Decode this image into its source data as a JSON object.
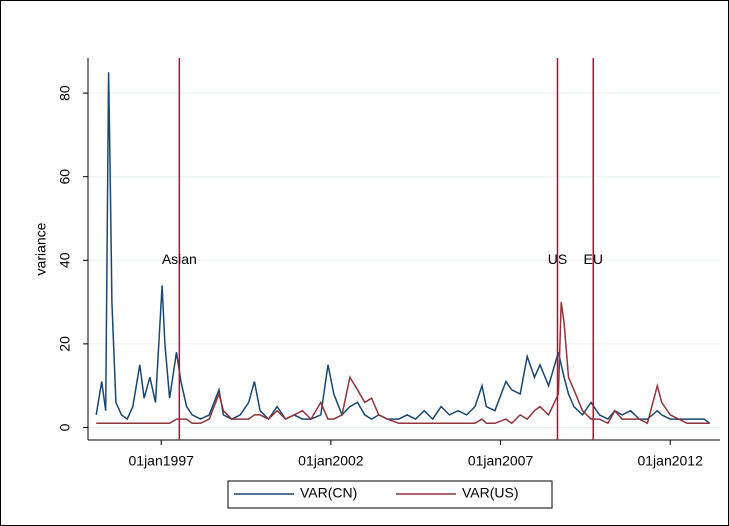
{
  "chart_data": {
    "type": "line",
    "ylabel": "variance",
    "x": [
      "1995-02-01",
      "1995-04-01",
      "1995-05-15",
      "1995-06-15",
      "1995-07-01",
      "1995-07-20",
      "1995-09-01",
      "1995-11-01",
      "1996-01-01",
      "1996-03-01",
      "1996-05-15",
      "1996-07-01",
      "1996-09-01",
      "1996-11-01",
      "1997-01-10",
      "1997-02-10",
      "1997-04-01",
      "1997-06-15",
      "1997-08-01",
      "1997-10-01",
      "1997-12-01",
      "1998-03-01",
      "1998-06-01",
      "1998-09-15",
      "1998-11-01",
      "1999-02-01",
      "1999-05-01",
      "1999-08-01",
      "1999-10-01",
      "1999-12-01",
      "2000-03-01",
      "2000-06-01",
      "2000-09-01",
      "2000-12-01",
      "2001-03-01",
      "2001-06-01",
      "2001-09-15",
      "2001-12-01",
      "2002-02-01",
      "2002-05-01",
      "2002-07-25",
      "2002-10-15",
      "2003-01-01",
      "2003-03-15",
      "2003-06-01",
      "2003-09-01",
      "2004-01-01",
      "2004-04-01",
      "2004-07-01",
      "2004-10-01",
      "2005-01-01",
      "2005-04-01",
      "2005-07-01",
      "2005-10-01",
      "2006-01-01",
      "2006-04-01",
      "2006-06-15",
      "2006-08-01",
      "2006-11-01",
      "2007-02-28",
      "2007-05-01",
      "2007-08-01",
      "2007-10-15",
      "2008-01-01",
      "2008-03-01",
      "2008-06-01",
      "2008-09-15",
      "2008-10-15",
      "2008-11-15",
      "2009-01-01",
      "2009-03-01",
      "2009-06-01",
      "2009-09-01",
      "2009-12-01",
      "2010-03-01",
      "2010-05-15",
      "2010-08-01",
      "2010-11-01",
      "2011-02-01",
      "2011-05-01",
      "2011-08-15",
      "2011-10-01",
      "2012-01-01",
      "2012-04-01",
      "2012-07-01",
      "2012-10-01",
      "2013-01-01",
      "2013-03-01"
    ],
    "series": [
      {
        "name": "VAR(CN)",
        "color": "#1a476f",
        "values": [
          3,
          11,
          4,
          85,
          62,
          30,
          6,
          3,
          2,
          5,
          15,
          7,
          12,
          6,
          34,
          20,
          7,
          18,
          11,
          5,
          3,
          2,
          3,
          9,
          3,
          2,
          3,
          6,
          11,
          4,
          2,
          5,
          2,
          3,
          2,
          2,
          3,
          15,
          8,
          3,
          5,
          6,
          3,
          2,
          3,
          2,
          2,
          3,
          2,
          4,
          2,
          5,
          3,
          4,
          3,
          5,
          10,
          5,
          4,
          11,
          9,
          8,
          17,
          12,
          15,
          10,
          18,
          15,
          12,
          8,
          5,
          3,
          6,
          3,
          2,
          4,
          3,
          4,
          2,
          2,
          4,
          3,
          2,
          2,
          2,
          2,
          2,
          1
        ]
      },
      {
        "name": "VAR(US)",
        "color": "#90353b",
        "values": [
          1,
          1,
          1,
          1,
          1,
          1,
          1,
          1,
          1,
          1,
          1,
          1,
          1,
          1,
          1,
          1,
          1,
          2,
          2,
          2,
          1,
          1,
          2,
          8,
          4,
          2,
          2,
          2,
          3,
          3,
          2,
          4,
          2,
          3,
          4,
          2,
          6,
          2,
          2,
          3,
          12,
          9,
          6,
          7,
          3,
          2,
          1,
          1,
          1,
          1,
          1,
          1,
          1,
          1,
          1,
          1,
          2,
          1,
          1,
          2,
          1,
          3,
          2,
          4,
          5,
          3,
          8,
          30,
          25,
          12,
          9,
          4,
          2,
          2,
          1,
          4,
          2,
          2,
          2,
          1,
          10,
          6,
          3,
          2,
          1,
          1,
          1,
          1
        ]
      }
    ],
    "events": [
      {
        "label": "Asian",
        "date": "1997-07-15"
      },
      {
        "label": "US",
        "date": "2008-09-05"
      },
      {
        "label": "EU",
        "date": "2009-09-25"
      }
    ],
    "event_label_y": 40,
    "event_color": "#c10534",
    "xlim": [
      "1994-11-05",
      "2013-06-20"
    ],
    "xticks": [
      {
        "value": "1997-01-01",
        "label": "01jan1997"
      },
      {
        "value": "2002-01-01",
        "label": "01jan2002"
      },
      {
        "value": "2007-01-01",
        "label": "01jan2007"
      },
      {
        "value": "2012-01-01",
        "label": "01jan2012"
      }
    ],
    "ylim": [
      -3,
      88.4
    ],
    "yticks": [
      0,
      20,
      40,
      60,
      80
    ],
    "grid": true
  }
}
